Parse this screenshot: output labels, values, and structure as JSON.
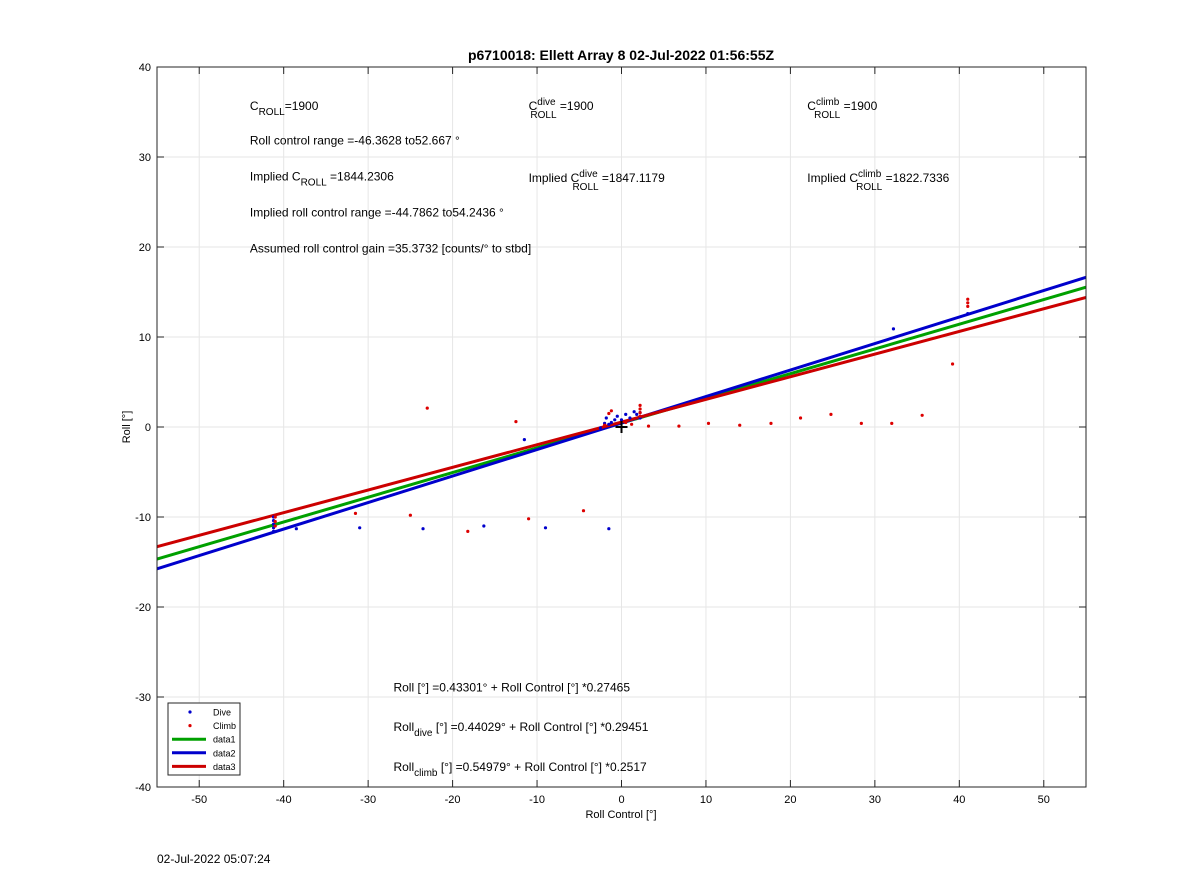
{
  "chart_data": {
    "type": "scatter",
    "title": "p6710018: Ellett Array 8 02-Jul-2022 01:56:55Z",
    "xlabel": "Roll Control [°]",
    "ylabel": "Roll [°]",
    "xlim": [
      -55,
      55
    ],
    "ylim": [
      -40,
      40
    ],
    "xticks": [
      -50,
      -40,
      -30,
      -20,
      -10,
      0,
      10,
      20,
      30,
      40,
      50
    ],
    "yticks": [
      -40,
      -30,
      -20,
      -10,
      0,
      10,
      20,
      30,
      40
    ],
    "grid": true,
    "legend_position": "bottom-left",
    "series": [
      {
        "name": "Dive",
        "kind": "points",
        "color": "#0000cc",
        "points": [
          [
            -41.2,
            -11.6
          ],
          [
            -41.2,
            -11.2
          ],
          [
            -41.2,
            -10.8
          ],
          [
            -41.2,
            -10.4
          ],
          [
            -41.2,
            -10.0
          ],
          [
            -38.5,
            -11.3
          ],
          [
            -31,
            -11.2
          ],
          [
            -23.5,
            -11.3
          ],
          [
            -16.3,
            -11.0
          ],
          [
            -9,
            -11.2
          ],
          [
            -1.5,
            -11.3
          ],
          [
            -11.5,
            -1.4
          ],
          [
            -2.5,
            -0.1
          ],
          [
            -1.8,
            1.0
          ],
          [
            -1.2,
            0.5
          ],
          [
            -0.8,
            0.8
          ],
          [
            -0.5,
            1.2
          ],
          [
            0,
            0.8
          ],
          [
            0.5,
            1.4
          ],
          [
            1,
            1.0
          ],
          [
            1.5,
            1.7
          ],
          [
            1.8,
            1.4
          ],
          [
            2.2,
            1.6
          ],
          [
            2.2,
            1.0
          ],
          [
            -1.5,
            0.3
          ],
          [
            -2,
            0.4
          ],
          [
            32.2,
            10.9
          ],
          [
            41,
            12.6
          ]
        ]
      },
      {
        "name": "Climb",
        "kind": "points",
        "color": "#dd0000",
        "points": [
          [
            -41,
            -10.0
          ],
          [
            -41,
            -10.5
          ],
          [
            -41,
            -11.0
          ],
          [
            -23,
            2.1
          ],
          [
            -12.5,
            0.6
          ],
          [
            -31.5,
            -9.6
          ],
          [
            -25,
            -9.8
          ],
          [
            -18.2,
            -11.6
          ],
          [
            -11,
            -10.2
          ],
          [
            -4.5,
            -9.3
          ],
          [
            -2,
            0.2
          ],
          [
            -1.5,
            1.5
          ],
          [
            -1.2,
            1.8
          ],
          [
            0.5,
            0.5
          ],
          [
            1.2,
            0.3
          ],
          [
            2.2,
            2.4
          ],
          [
            2.2,
            2.0
          ],
          [
            2.2,
            1.6
          ],
          [
            2.2,
            1.2
          ],
          [
            3.2,
            0.1
          ],
          [
            6.8,
            0.1
          ],
          [
            10.3,
            0.4
          ],
          [
            14,
            0.2
          ],
          [
            17.7,
            0.4
          ],
          [
            21.2,
            1.0
          ],
          [
            24.8,
            1.4
          ],
          [
            28.4,
            0.4
          ],
          [
            32,
            0.4
          ],
          [
            35.6,
            1.3
          ],
          [
            39.2,
            7.0
          ],
          [
            41,
            13.4
          ],
          [
            41,
            13.8
          ],
          [
            41,
            14.2
          ]
        ]
      },
      {
        "name": "data1",
        "kind": "line",
        "color": "#00a000",
        "intercept": 0.43301,
        "slope": 0.27465
      },
      {
        "name": "data2",
        "kind": "line",
        "color": "#0000cc",
        "intercept": 0.44029,
        "slope": 0.29451
      },
      {
        "name": "data3",
        "kind": "line",
        "color": "#cc0000",
        "intercept": 0.54979,
        "slope": 0.2517
      }
    ],
    "origin_marker": [
      0,
      0
    ],
    "annotations": [
      {
        "id": "c-roll",
        "x": -44,
        "y": 35.2,
        "parts": [
          [
            "C",
            ""
          ],
          [
            "ROLL",
            "sub"
          ],
          [
            "=1900",
            ""
          ]
        ]
      },
      {
        "id": "c-roll-dive",
        "x": -11,
        "y": 35.2,
        "parts": [
          [
            "C",
            ""
          ],
          [
            "dive",
            "sup"
          ],
          [
            "ROLL",
            "sub"
          ],
          [
            " =1900",
            ""
          ]
        ]
      },
      {
        "id": "c-roll-climb",
        "x": 22,
        "y": 35.2,
        "parts": [
          [
            "C",
            ""
          ],
          [
            "climb",
            "sup"
          ],
          [
            "ROLL",
            "sub"
          ],
          [
            " =1900",
            ""
          ]
        ]
      },
      {
        "id": "roll-control-range",
        "x": -44,
        "y": 31.4,
        "parts": [
          [
            "Roll control range =-46.3628 to52.667 °",
            ""
          ]
        ]
      },
      {
        "id": "implied-c-roll",
        "x": -44,
        "y": 27.4,
        "parts": [
          [
            "Implied C",
            ""
          ],
          [
            "ROLL",
            "sub"
          ],
          [
            " =1844.2306",
            ""
          ]
        ]
      },
      {
        "id": "implied-c-roll-dive",
        "x": -11,
        "y": 27.2,
        "parts": [
          [
            "Implied C",
            ""
          ],
          [
            "dive",
            "sup"
          ],
          [
            "ROLL",
            "sub"
          ],
          [
            " =1847.1179",
            ""
          ]
        ]
      },
      {
        "id": "implied-c-roll-climb",
        "x": 22,
        "y": 27.2,
        "parts": [
          [
            "Implied C",
            ""
          ],
          [
            "climb",
            "sup"
          ],
          [
            "ROLL",
            "sub"
          ],
          [
            " =1822.7336",
            ""
          ]
        ]
      },
      {
        "id": "implied-roll-control-range",
        "x": -44,
        "y": 23.4,
        "parts": [
          [
            "Implied roll control range =-44.7862 to54.2436 °",
            ""
          ]
        ]
      },
      {
        "id": "assumed-gain",
        "x": -44,
        "y": 19.4,
        "parts": [
          [
            "Assumed roll control gain =35.3732 [counts/° to stbd]",
            ""
          ]
        ]
      },
      {
        "id": "fit-all",
        "x": -27,
        "y": -29.4,
        "parts": [
          [
            "Roll [°] =0.43301° + Roll Control [°] *0.27465",
            ""
          ]
        ]
      },
      {
        "id": "fit-dive",
        "x": -27,
        "y": -33.8,
        "parts": [
          [
            "Roll",
            ""
          ],
          [
            "dive",
            "sub"
          ],
          [
            " [°] =0.44029° + Roll Control [°] *0.29451",
            ""
          ]
        ]
      },
      {
        "id": "fit-climb",
        "x": -27,
        "y": -38.2,
        "parts": [
          [
            "Roll",
            ""
          ],
          [
            "climb",
            "sub"
          ],
          [
            " [°] =0.54979° + Roll Control [°] *0.2517",
            ""
          ]
        ]
      }
    ]
  },
  "footer": {
    "timestamp": "02-Jul-2022 05:07:24"
  }
}
